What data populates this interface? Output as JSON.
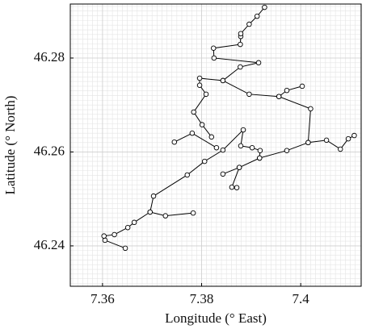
{
  "chart_data": {
    "type": "line",
    "x_label": "Longitude (° East)",
    "y_label": "Latitude (° North)",
    "xlim": [
      7.3535,
      7.4122
    ],
    "ylim": [
      46.2314,
      46.2915
    ],
    "xticks": [
      7.36,
      7.38,
      7.4
    ],
    "yticks": [
      46.24,
      46.26,
      46.28
    ],
    "grid": true,
    "minor_grid": 0.001,
    "marker": "circle",
    "series": [
      {
        "color": "#000000",
        "x": [
          7.3646,
          7.3605,
          7.3603,
          7.3624,
          7.3651,
          7.3664,
          7.3696,
          7.3703,
          7.3771,
          7.3806,
          7.3843,
          7.3884,
          7.3879,
          7.3902,
          7.3918,
          7.3917,
          7.3972,
          7.4015,
          7.402,
          7.3956,
          7.3896,
          7.3843,
          7.3878,
          7.3915,
          7.3825,
          7.3824,
          7.3878,
          7.3879,
          7.3879,
          7.3896,
          7.3912,
          7.3927,
          null,
          7.3783,
          7.3727,
          7.3696,
          null,
          7.4015,
          7.4052,
          7.408,
          7.4096,
          7.4108,
          null,
          7.3745,
          7.3781,
          7.383,
          null,
          7.382,
          7.3801,
          7.3784,
          7.3809,
          7.3796,
          7.3796,
          7.3843,
          null,
          7.3956,
          7.3972,
          7.4003,
          null,
          7.3917,
          7.3876,
          7.3843,
          null,
          7.3876,
          7.3861,
          7.3871
        ],
        "values": [
          46.2395,
          46.2412,
          46.2421,
          46.2424,
          46.2439,
          46.245,
          46.2472,
          46.2506,
          46.2551,
          46.258,
          46.2604,
          46.2647,
          46.2613,
          46.2609,
          46.2603,
          46.2587,
          46.2603,
          46.262,
          46.2692,
          46.2718,
          46.2723,
          46.2752,
          46.2781,
          46.279,
          46.28,
          46.2821,
          46.2829,
          46.2846,
          46.2852,
          46.2872,
          46.2889,
          46.2908,
          null,
          46.247,
          46.2464,
          46.2472,
          null,
          46.262,
          46.2625,
          46.2606,
          46.2628,
          46.2635,
          null,
          46.2621,
          46.264,
          46.2609,
          null,
          46.2632,
          46.2658,
          46.2685,
          46.2723,
          46.2742,
          46.2757,
          46.2752,
          null,
          46.2718,
          46.2731,
          46.274,
          null,
          46.2587,
          46.2567,
          46.2553,
          null,
          46.2567,
          46.2525,
          46.2524
        ]
      }
    ]
  }
}
